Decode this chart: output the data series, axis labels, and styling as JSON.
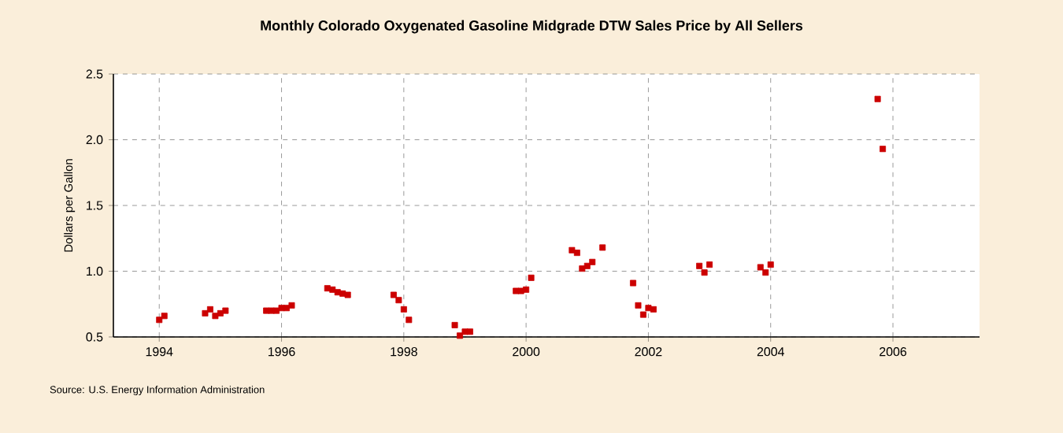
{
  "chart_data": {
    "type": "scatter",
    "title": "Monthly Colorado Oxygenated Gasoline Midgrade DTW Sales Price by All Sellers",
    "ylabel": "Dollars per Gallon",
    "annotations": [
      "Source: U.S. Energy Information Administration"
    ],
    "x": [
      "1994-01",
      "1994-02",
      "1994-10",
      "1994-11",
      "1994-12",
      "1995-01",
      "1995-02",
      "1995-10",
      "1995-11",
      "1995-12",
      "1996-01",
      "1996-02",
      "1996-03",
      "1996-10",
      "1996-11",
      "1996-12",
      "1997-01",
      "1997-02",
      "1997-11",
      "1997-12",
      "1998-01",
      "1998-02",
      "1998-11",
      "1998-12",
      "1999-01",
      "1999-02",
      "1999-11",
      "1999-12",
      "2000-01",
      "2000-02",
      "2000-10",
      "2000-11",
      "2000-12",
      "2001-01",
      "2001-02",
      "2001-04",
      "2001-10",
      "2001-11",
      "2001-12",
      "2002-01",
      "2002-02",
      "2002-11",
      "2002-12",
      "2003-01",
      "2003-11",
      "2003-12",
      "2004-01",
      "2005-10",
      "2005-11"
    ],
    "series": [
      {
        "color": "#cc0000",
        "values": [
          0.63,
          0.66,
          0.68,
          0.71,
          0.66,
          0.68,
          0.7,
          0.7,
          0.7,
          0.7,
          0.72,
          0.72,
          0.74,
          0.87,
          0.86,
          0.84,
          0.83,
          0.82,
          0.82,
          0.78,
          0.71,
          0.63,
          0.59,
          0.51,
          0.54,
          0.54,
          0.85,
          0.85,
          0.86,
          0.95,
          1.16,
          1.14,
          1.02,
          1.04,
          1.07,
          1.18,
          0.91,
          0.74,
          0.67,
          0.72,
          0.71,
          1.04,
          0.99,
          1.05,
          1.03,
          0.99,
          1.05,
          2.31,
          1.93
        ]
      }
    ],
    "xlim": [
      "1993-04",
      "2007-06"
    ],
    "xticks": [
      "1994",
      "1996",
      "1998",
      "2000",
      "2002",
      "2004",
      "2006"
    ],
    "ylim": [
      0.5,
      2.5
    ],
    "yticks": [
      {
        "value": 0.5,
        "label": "0.5"
      },
      {
        "value": 1,
        "label": "1.0"
      },
      {
        "value": 1.5,
        "label": "1.5"
      },
      {
        "value": 2,
        "label": "2.0"
      },
      {
        "value": 2.5,
        "label": "2.5"
      }
    ],
    "grid": true,
    "marker": "square"
  }
}
